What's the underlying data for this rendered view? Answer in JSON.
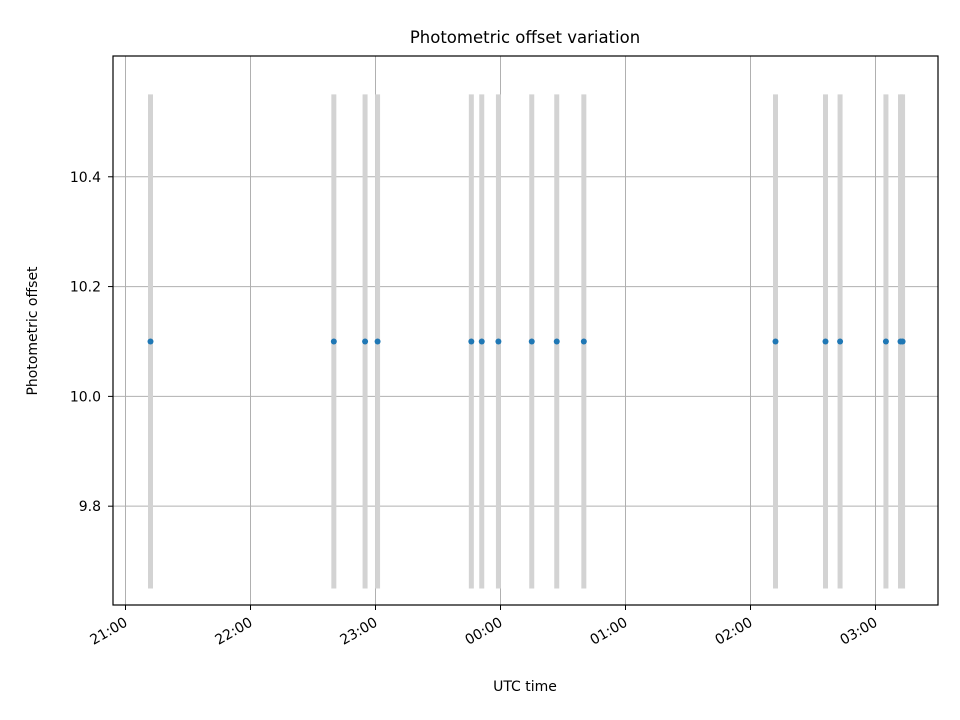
{
  "chart_data": {
    "type": "scatter",
    "title": "Photometric offset variation",
    "xlabel": "UTC time",
    "ylabel": "Photometric offset",
    "x_ticks": [
      "21:00",
      "22:00",
      "23:00",
      "00:00",
      "01:00",
      "02:00",
      "03:00"
    ],
    "y_ticks": [
      "9.8",
      "10.0",
      "10.2",
      "10.4"
    ],
    "y_tick_values": [
      9.8,
      10.0,
      10.2,
      10.4
    ],
    "xlim_hours": [
      20.9,
      27.5
    ],
    "ylim": [
      9.62,
      10.62
    ],
    "grid": true,
    "point_color": "#1f77b4",
    "errorbar_color": "#d3d3d3",
    "points": [
      {
        "x": "21:12",
        "y": 10.1,
        "err_low": 9.65,
        "err_high": 10.55
      },
      {
        "x": "22:40",
        "y": 10.1,
        "err_low": 9.65,
        "err_high": 10.55
      },
      {
        "x": "22:55",
        "y": 10.1,
        "err_low": 9.65,
        "err_high": 10.55
      },
      {
        "x": "23:01",
        "y": 10.1,
        "err_low": 9.65,
        "err_high": 10.55
      },
      {
        "x": "23:46",
        "y": 10.1,
        "err_low": 9.65,
        "err_high": 10.55
      },
      {
        "x": "23:51",
        "y": 10.1,
        "err_low": 9.65,
        "err_high": 10.55
      },
      {
        "x": "23:59",
        "y": 10.1,
        "err_low": 9.65,
        "err_high": 10.55
      },
      {
        "x": "00:15",
        "y": 10.1,
        "err_low": 9.65,
        "err_high": 10.55
      },
      {
        "x": "00:27",
        "y": 10.1,
        "err_low": 9.65,
        "err_high": 10.55
      },
      {
        "x": "00:40",
        "y": 10.1,
        "err_low": 9.65,
        "err_high": 10.55
      },
      {
        "x": "02:12",
        "y": 10.1,
        "err_low": 9.65,
        "err_high": 10.55
      },
      {
        "x": "02:36",
        "y": 10.1,
        "err_low": 9.65,
        "err_high": 10.55
      },
      {
        "x": "02:43",
        "y": 10.1,
        "err_low": 9.65,
        "err_high": 10.55
      },
      {
        "x": "03:05",
        "y": 10.1,
        "err_low": 9.65,
        "err_high": 10.55
      },
      {
        "x": "03:12",
        "y": 10.1,
        "err_low": 9.65,
        "err_high": 10.55
      },
      {
        "x": "03:13",
        "y": 10.1,
        "err_low": 9.65,
        "err_high": 10.55
      }
    ]
  }
}
